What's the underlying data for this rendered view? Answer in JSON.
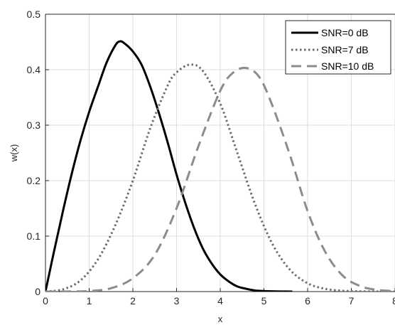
{
  "chart_data": {
    "type": "line",
    "xlabel": "x",
    "ylabel": "w(x)",
    "xlim": [
      0,
      8
    ],
    "ylim": [
      0,
      0.5
    ],
    "x_ticks": [
      0,
      1,
      2,
      3,
      4,
      5,
      6,
      7,
      8
    ],
    "y_ticks": [
      0,
      0.1,
      0.2,
      0.3,
      0.4,
      0.5
    ],
    "grid": true,
    "legend_position": "top-right",
    "series": [
      {
        "name": "SNR=0 dB",
        "style": "solid",
        "color": "#000000",
        "x": [
          0,
          0.2,
          0.4,
          0.6,
          0.8,
          1.0,
          1.2,
          1.4,
          1.6,
          1.7,
          1.8,
          2.0,
          2.2,
          2.4,
          2.6,
          2.8,
          3.0,
          3.2,
          3.4,
          3.6,
          3.8,
          4.0,
          4.2,
          4.4,
          4.6,
          4.8,
          5.0,
          5.2,
          5.4,
          5.65
        ],
        "y": [
          0,
          0.074,
          0.145,
          0.212,
          0.272,
          0.324,
          0.369,
          0.413,
          0.444,
          0.451,
          0.448,
          0.433,
          0.409,
          0.369,
          0.321,
          0.268,
          0.211,
          0.16,
          0.115,
          0.078,
          0.051,
          0.031,
          0.018,
          0.009,
          0.005,
          0.002,
          0.001,
          0.0005,
          0.0002,
          0
        ]
      },
      {
        "name": "SNR=7 dB",
        "style": "dotted",
        "color": "#6e6e6e",
        "x": [
          0,
          0.4,
          0.8,
          1.2,
          1.6,
          2.0,
          2.4,
          2.8,
          3.0,
          3.3,
          3.6,
          4.0,
          4.4,
          4.8,
          5.2,
          5.6,
          6.0,
          6.4,
          6.8,
          7.2,
          7.6,
          8.0
        ],
        "y": [
          0,
          0.004,
          0.02,
          0.058,
          0.12,
          0.2,
          0.295,
          0.372,
          0.395,
          0.409,
          0.398,
          0.339,
          0.248,
          0.157,
          0.085,
          0.039,
          0.015,
          0.005,
          0.0015,
          0.0004,
          0.0001,
          0
        ]
      },
      {
        "name": "SNR=10 dB",
        "style": "dashed",
        "color": "#8c8c8c",
        "x": [
          0,
          0.5,
          1.0,
          1.5,
          2.0,
          2.5,
          3.0,
          3.5,
          4.0,
          4.3,
          4.6,
          4.9,
          5.2,
          5.6,
          6.0,
          6.4,
          6.8,
          7.2,
          7.6,
          8.0
        ],
        "y": [
          0,
          0.0002,
          0.001,
          0.006,
          0.024,
          0.066,
          0.15,
          0.262,
          0.362,
          0.395,
          0.403,
          0.386,
          0.334,
          0.245,
          0.145,
          0.072,
          0.029,
          0.01,
          0.003,
          0.001
        ]
      }
    ]
  }
}
